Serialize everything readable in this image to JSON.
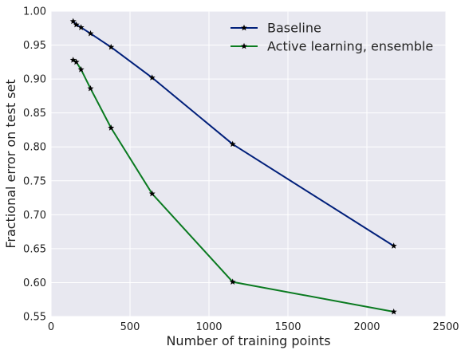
{
  "chart_data": {
    "type": "line",
    "title": "",
    "xlabel": "Number of training points",
    "ylabel": "Fractional error on test set",
    "xlim": [
      0,
      2500
    ],
    "ylim": [
      0.55,
      1.0
    ],
    "xticks": [
      0,
      500,
      1000,
      1500,
      2000,
      2500
    ],
    "xtick_labels": [
      "0",
      "500",
      "1000",
      "1500",
      "2000",
      "2500"
    ],
    "yticks": [
      0.55,
      0.6,
      0.65,
      0.7,
      0.75,
      0.8,
      0.85,
      0.9,
      0.95,
      1.0
    ],
    "ytick_labels": [
      "0.55",
      "0.60",
      "0.65",
      "0.70",
      "0.75",
      "0.80",
      "0.85",
      "0.90",
      "0.95",
      "1.00"
    ],
    "grid": true,
    "legend_position": "top-right",
    "background_color": "#e8e8f0",
    "grid_color": "#ffffff",
    "marker": "star",
    "series": [
      {
        "name": "Baseline",
        "color": "#001f7a",
        "x": [
          140,
          160,
          190,
          250,
          380,
          640,
          1150,
          2170
        ],
        "y": [
          0.985,
          0.98,
          0.976,
          0.967,
          0.947,
          0.902,
          0.804,
          0.654
        ]
      },
      {
        "name": "Active learning, ensemble",
        "color": "#0a7a20",
        "x": [
          140,
          160,
          190,
          250,
          380,
          640,
          1150,
          2170
        ],
        "y": [
          0.928,
          0.925,
          0.914,
          0.886,
          0.828,
          0.731,
          0.601,
          0.557
        ]
      }
    ]
  }
}
